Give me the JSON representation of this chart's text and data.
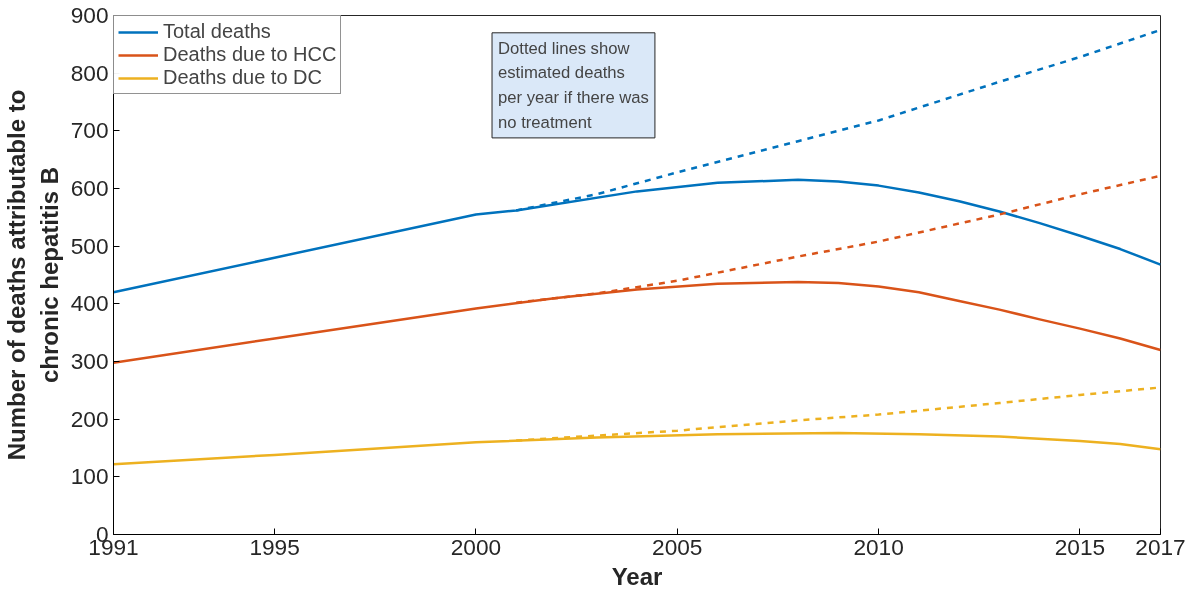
{
  "chart_data": {
    "type": "line",
    "xlabel": "Year",
    "ylabel": "Number of deaths attributable to\nchronic hepatitis B",
    "xlim": [
      1991,
      2017
    ],
    "xticks": [
      1991,
      1995,
      2000,
      2005,
      2010,
      2015,
      2017
    ],
    "ylim": [
      0,
      900
    ],
    "yticks": [
      0,
      100,
      200,
      300,
      400,
      500,
      600,
      700,
      800,
      900
    ],
    "grid": false,
    "legend": "top left",
    "marker": "none",
    "annotations": [
      "Dotted lines show\nestimated deaths\nper year if there was\nno treatment"
    ],
    "series": [
      {
        "name": "Total deaths",
        "color": "#0072bd",
        "line_style": "solid",
        "x": [
          1991,
          1995,
          2000,
          2001,
          2004,
          2006,
          2008,
          2009,
          2010,
          2011,
          2012,
          2013,
          2014,
          2015,
          2016,
          2017
        ],
        "values": [
          420,
          480,
          555,
          562,
          595,
          610,
          615,
          612,
          605,
          593,
          578,
          560,
          540,
          518,
          495,
          468
        ]
      },
      {
        "name": "Deaths due to HCC",
        "color": "#d95319",
        "line_style": "solid",
        "x": [
          1991,
          1995,
          2000,
          2002,
          2004,
          2006,
          2008,
          2009,
          2010,
          2011,
          2012,
          2013,
          2014,
          2015,
          2016,
          2017
        ],
        "values": [
          298,
          340,
          392,
          410,
          425,
          435,
          438,
          436,
          430,
          420,
          405,
          390,
          373,
          357,
          340,
          320
        ]
      },
      {
        "name": "Deaths due to DC",
        "color": "#edb120",
        "line_style": "solid",
        "x": [
          1991,
          1995,
          2000,
          2003,
          2006,
          2009,
          2011,
          2013,
          2015,
          2016,
          2017
        ],
        "values": [
          122,
          138,
          160,
          168,
          174,
          176,
          174,
          170,
          162,
          157,
          148
        ]
      },
      {
        "color": "#0072bd",
        "line_style": "dashed",
        "x": [
          2001,
          2003,
          2005,
          2008,
          2010,
          2013,
          2015,
          2017
        ],
        "values": [
          562,
          590,
          628,
          682,
          718,
          785,
          828,
          875
        ]
      },
      {
        "color": "#d95319",
        "line_style": "dashed",
        "x": [
          2001,
          2003,
          2005,
          2008,
          2010,
          2013,
          2015,
          2017
        ],
        "values": [
          402,
          418,
          440,
          482,
          508,
          555,
          590,
          622
        ]
      },
      {
        "color": "#edb120",
        "line_style": "dashed",
        "x": [
          2001,
          2005,
          2008,
          2010,
          2013,
          2015,
          2017
        ],
        "values": [
          163,
          180,
          198,
          208,
          228,
          242,
          255
        ]
      }
    ]
  }
}
